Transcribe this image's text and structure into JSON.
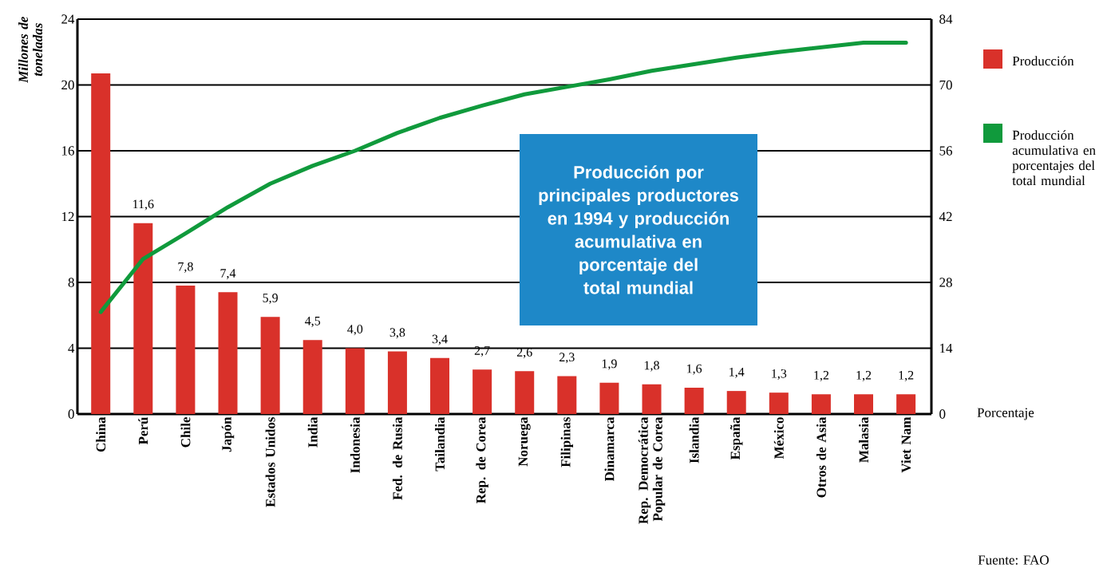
{
  "chart_data": {
    "type": "bar",
    "title": "Producción por principales productores en 1994 y producción acumulativa en porcentaje del total mundial",
    "ylabel": "Millones de toneladas",
    "y2label": "Porcentaje",
    "categories": [
      "China",
      "Perú",
      "Chile",
      "Japón",
      "Estados Unidos",
      "India",
      "Indonesia",
      "Fed. de Rusia",
      "Tailandia",
      "Rep. de Corea",
      "Noruega",
      "Filipinas",
      "Dinamarca",
      "Rep. Democrática Popular de Corea",
      "Islandia",
      "España",
      "México",
      "Otros de Asia",
      "Malasia",
      "Viet Nam"
    ],
    "series": [
      {
        "name": "Producción",
        "color": "#d9312a",
        "values": [
          20.7,
          11.6,
          7.8,
          7.4,
          5.9,
          4.5,
          4.0,
          3.8,
          3.4,
          2.7,
          2.6,
          2.3,
          1.9,
          1.8,
          1.6,
          1.4,
          1.3,
          1.2,
          1.2,
          1.2
        ],
        "value_labels": [
          null,
          "11,6",
          "7,8",
          "7,4",
          "5,9",
          "4,5",
          "4,0",
          "3,8",
          "3,4",
          "2,7",
          "2,6",
          "2,3",
          "1,9",
          "1,8",
          "1,6",
          "1,4",
          "1,3",
          "1,2",
          "1,2",
          "1,2"
        ]
      },
      {
        "name": "Producción acumulativa en porcentajes del total mundial",
        "type": "line",
        "axis": "y2",
        "color": "#109a3c",
        "values": [
          21.7,
          33,
          38.4,
          44,
          49,
          52.8,
          56,
          59.8,
          63,
          65.6,
          68,
          69.6,
          71.2,
          73,
          74.4,
          75.8,
          77,
          78,
          79,
          79
        ]
      }
    ],
    "ylim": [
      0,
      24
    ],
    "yticks": [
      0,
      4,
      8,
      12,
      16,
      20,
      24
    ],
    "y2lim": [
      0,
      84
    ],
    "y2ticks": [
      0,
      14,
      28,
      42,
      56,
      70,
      84
    ],
    "grid": "y",
    "legend": "top right",
    "marker": "none",
    "line_style": "solid",
    "annotations": [
      "Fuente: FAO"
    ]
  }
}
